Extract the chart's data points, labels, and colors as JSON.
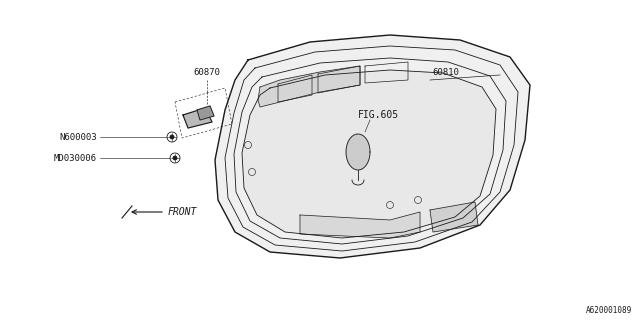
{
  "bg_color": "#ffffff",
  "line_color": "#1a1a1a",
  "label_60870": "60870",
  "label_60810": "60810",
  "label_N600003": "N600003",
  "label_MD30006": "MD030006",
  "label_FIG605": "FIG.605",
  "label_FRONT": "FRONT",
  "label_ref": "A620001089",
  "figsize": [
    6.4,
    3.2
  ],
  "dpi": 100
}
